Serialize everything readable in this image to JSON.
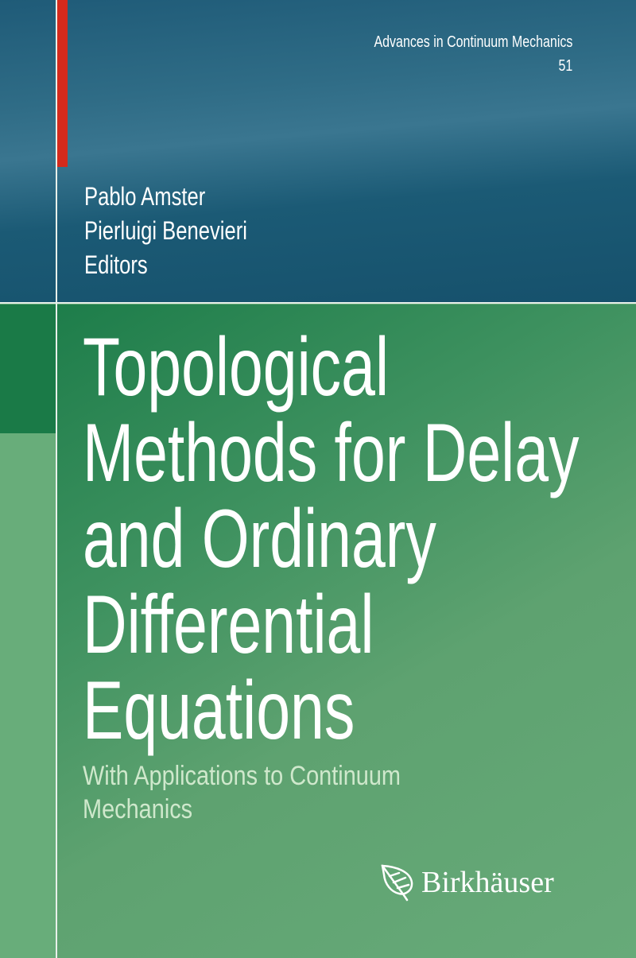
{
  "series": {
    "name": "Advances in Continuum Mechanics",
    "number": "51"
  },
  "authors": [
    "Pablo Amster",
    "Pierluigi Benevieri",
    "Editors"
  ],
  "title": [
    "Topological",
    "Methods for Delay",
    "and Ordinary",
    "Differential",
    "Equations"
  ],
  "subtitle": [
    "With Applications to Continuum",
    "Mechanics"
  ],
  "publisher": {
    "name": "Birkhäuser",
    "logo_icon": "leaf-icon"
  },
  "colors": {
    "top_band": "#1f5b78",
    "bottom_band": "#3f9260",
    "accent_bar": "#d52a1c",
    "subtitle": "#cfe8cc"
  }
}
